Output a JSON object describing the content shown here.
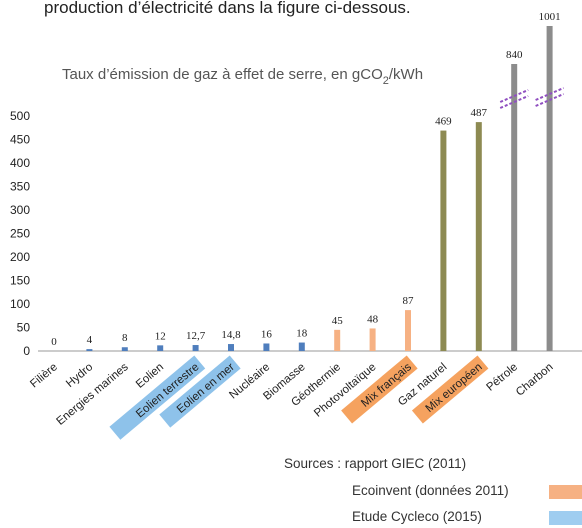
{
  "intro_text": "production d’électricité dans la figure ci-dessous.",
  "chart_data": {
    "type": "bar",
    "title": "Taux d’émission de gaz à effet de serre, en gCO",
    "title_sub": "2",
    "title_unit": "/kWh",
    "categories": [
      "Filière",
      "Hydro",
      "Energies marines",
      "Eolien",
      "Eolien terrestre",
      "Eolien en mer",
      "Nucléaire",
      "Biomasse",
      "Géothermie",
      "Photovoltaïque",
      "Mix français",
      "Gaz naturel",
      "Mix européen",
      "Pétrole",
      "Charbon"
    ],
    "values": [
      0,
      4,
      8,
      12,
      12.7,
      14.8,
      16,
      18,
      45,
      48,
      87,
      469,
      487,
      840,
      1001
    ],
    "value_labels": [
      "0",
      "4",
      "8",
      "12",
      "12,7",
      "14,8",
      "16",
      "18",
      "45",
      "48",
      "87",
      "469",
      "487",
      "840",
      "1001"
    ],
    "bar_groups": [
      "blue",
      "blue",
      "blue",
      "blue",
      "blue",
      "blue",
      "blue",
      "blue",
      "orange",
      "orange",
      "orange",
      "olive",
      "olive",
      "gray",
      "gray"
    ],
    "highlighted_labels": {
      "Eolien terrestre": "blue",
      "Eolien en mer": "blue",
      "Mix français": "orange",
      "Mix européen": "orange"
    },
    "broken_axis_above": 500,
    "ylim": [
      0,
      500
    ],
    "yticks": [
      0,
      50,
      100,
      150,
      200,
      250,
      300,
      350,
      400,
      450,
      500
    ],
    "grid": false,
    "colors": {
      "blue": "#4f7ebd",
      "orange": "#f6b183",
      "olive": "#8d8a52",
      "gray": "#8c8c8c",
      "highlight_blue": "#8ec2ea",
      "highlight_orange": "#f5a25f",
      "break_marks": "#9050c0"
    }
  },
  "sources": "Sources : rapport GIEC (2011)",
  "legend": [
    {
      "label": "Ecoinvent  (données 2011)",
      "color": "#f6b183"
    },
    {
      "label": "Etude Cycleco (2015)",
      "color": "#9fcdf0"
    }
  ]
}
